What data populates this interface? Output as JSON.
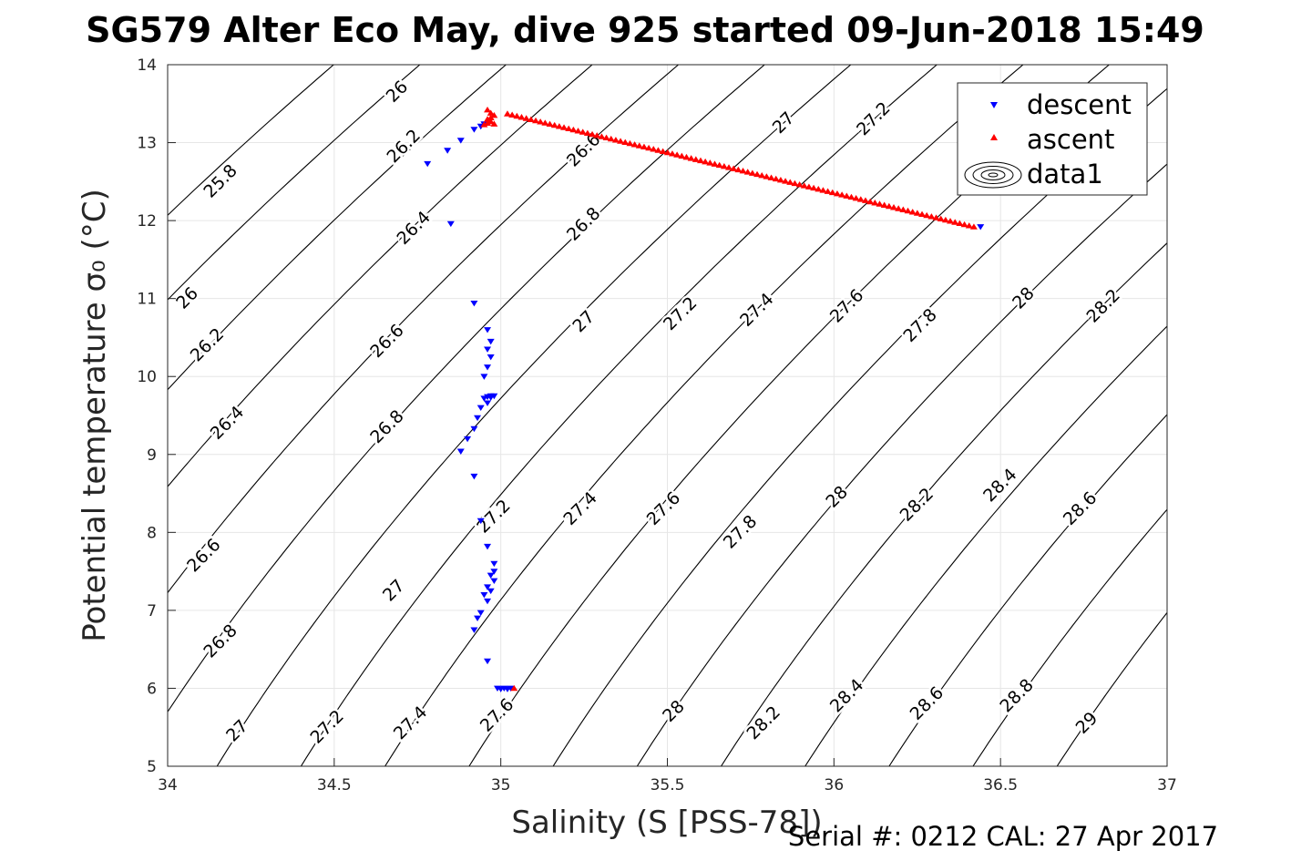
{
  "title": "SG579 Alter Eco May, dive 925 started 09-Jun-2018 15:49",
  "footer": "Serial #: 0212  CAL: 27 Apr 2017",
  "colors": {
    "descent": "#0000ff",
    "ascent": "#ff0000",
    "contour": "#000000",
    "grid": "#e6e6e6"
  },
  "chart_data": {
    "type": "scatter",
    "xlabel": "Salinity (S [PSS-78])",
    "ylabel": "Potential temperature σ₀ (°C)",
    "xlim": [
      34,
      37
    ],
    "ylim": [
      5,
      14
    ],
    "xticks": [
      34,
      34.5,
      35,
      35.5,
      36,
      36.5,
      37
    ],
    "yticks": [
      5,
      6,
      7,
      8,
      9,
      10,
      11,
      12,
      13,
      14
    ],
    "grid": true,
    "legend_position": "top-right",
    "legend": [
      "descent",
      "ascent",
      "data1"
    ],
    "contour_series": "data1",
    "contour_levels": [
      25.8,
      26,
      26.2,
      26.4,
      26.6,
      26.8,
      27,
      27.2,
      27.4,
      27.6,
      27.8,
      28,
      28.2,
      28.4,
      28.6,
      28.8,
      29
    ],
    "contour_labels": [
      {
        "s": 34.16,
        "t": 12.5,
        "text": "25.8"
      },
      {
        "s": 34.06,
        "t": 11.0,
        "text": "26"
      },
      {
        "s": 34.12,
        "t": 10.4,
        "text": "26.2"
      },
      {
        "s": 34.18,
        "t": 9.4,
        "text": "26.4"
      },
      {
        "s": 34.11,
        "t": 7.7,
        "text": "26.6"
      },
      {
        "s": 34.16,
        "t": 6.6,
        "text": "26.8"
      },
      {
        "s": 34.21,
        "t": 5.45,
        "text": "27"
      },
      {
        "s": 34.48,
        "t": 5.5,
        "text": "27.2"
      },
      {
        "s": 34.73,
        "t": 5.55,
        "text": "27.4"
      },
      {
        "s": 34.99,
        "t": 5.65,
        "text": "27.6"
      },
      {
        "s": 35.52,
        "t": 5.7,
        "text": "28"
      },
      {
        "s": 35.79,
        "t": 5.55,
        "text": "28.2"
      },
      {
        "s": 36.04,
        "t": 5.9,
        "text": "28.4"
      },
      {
        "s": 36.28,
        "t": 5.8,
        "text": "28.6"
      },
      {
        "s": 36.55,
        "t": 5.9,
        "text": "28.8"
      },
      {
        "s": 36.76,
        "t": 5.55,
        "text": "29"
      },
      {
        "s": 34.69,
        "t": 13.65,
        "text": "26"
      },
      {
        "s": 34.71,
        "t": 12.95,
        "text": "26.2"
      },
      {
        "s": 34.74,
        "t": 11.9,
        "text": "26.4"
      },
      {
        "s": 34.66,
        "t": 10.45,
        "text": "26.6"
      },
      {
        "s": 34.66,
        "t": 9.35,
        "text": "26.8"
      },
      {
        "s": 34.68,
        "t": 7.25,
        "text": "27"
      },
      {
        "s": 34.98,
        "t": 8.2,
        "text": "27.2"
      },
      {
        "s": 35.24,
        "t": 8.3,
        "text": "27.4"
      },
      {
        "s": 35.49,
        "t": 8.3,
        "text": "27.6"
      },
      {
        "s": 35.72,
        "t": 8.0,
        "text": "27.8"
      },
      {
        "s": 36.01,
        "t": 8.45,
        "text": "28"
      },
      {
        "s": 36.25,
        "t": 8.35,
        "text": "28.2"
      },
      {
        "s": 36.5,
        "t": 8.6,
        "text": "28.4"
      },
      {
        "s": 36.74,
        "t": 8.3,
        "text": "28.6"
      },
      {
        "s": 35.25,
        "t": 12.9,
        "text": "26.6"
      },
      {
        "s": 35.25,
        "t": 11.95,
        "text": "26.8"
      },
      {
        "s": 35.25,
        "t": 10.7,
        "text": "27"
      },
      {
        "s": 35.54,
        "t": 10.8,
        "text": "27.2"
      },
      {
        "s": 35.77,
        "t": 10.85,
        "text": "27.4"
      },
      {
        "s": 36.04,
        "t": 10.9,
        "text": "27.6"
      },
      {
        "s": 36.26,
        "t": 10.65,
        "text": "27.8"
      },
      {
        "s": 36.57,
        "t": 11.0,
        "text": "28"
      },
      {
        "s": 36.81,
        "t": 10.9,
        "text": "28.2"
      },
      {
        "s": 35.85,
        "t": 13.25,
        "text": "27"
      },
      {
        "s": 36.12,
        "t": 13.3,
        "text": "27.2"
      }
    ],
    "series": [
      {
        "name": "descent",
        "marker": "triangle-down",
        "color": "#0000ff",
        "x": [
          34.78,
          34.84,
          34.88,
          34.92,
          34.94,
          34.95,
          34.85,
          34.92,
          34.96,
          34.97,
          34.96,
          34.97,
          34.96,
          34.95,
          34.97,
          34.96,
          34.95,
          34.97,
          34.98,
          34.96,
          34.94,
          34.93,
          34.92,
          34.9,
          34.88,
          34.92,
          34.94,
          34.96,
          34.98,
          34.98,
          34.97,
          34.98,
          34.96,
          34.97,
          34.95,
          34.96,
          34.94,
          34.93,
          34.92,
          34.96,
          34.99,
          35.0,
          35.01,
          35.02,
          35.03,
          36.44
        ],
        "y": [
          12.73,
          12.9,
          13.03,
          13.17,
          13.21,
          13.24,
          11.96,
          10.94,
          10.6,
          10.45,
          10.35,
          10.25,
          10.12,
          10.0,
          9.75,
          9.74,
          9.72,
          9.73,
          9.75,
          9.66,
          9.6,
          9.47,
          9.33,
          9.2,
          9.04,
          8.72,
          8.15,
          7.82,
          7.6,
          7.5,
          7.45,
          7.38,
          7.3,
          7.25,
          7.2,
          7.12,
          6.97,
          6.9,
          6.75,
          6.35,
          6.0,
          5.99,
          6.0,
          5.99,
          6.0,
          11.92
        ]
      },
      {
        "name": "ascent",
        "marker": "triangle-up",
        "color": "#ff0000",
        "x": [
          34.95,
          34.96,
          34.97,
          34.96,
          34.98,
          34.97,
          34.96,
          34.97,
          34.98,
          35.04
        ],
        "y": [
          13.23,
          13.25,
          13.27,
          13.3,
          13.35,
          13.38,
          13.42,
          13.32,
          13.24,
          6.0
        ],
        "track": {
          "x_start": 35.02,
          "y_start": 13.37,
          "x_end": 36.42,
          "y_end": 11.92,
          "count": 100
        }
      }
    ]
  }
}
